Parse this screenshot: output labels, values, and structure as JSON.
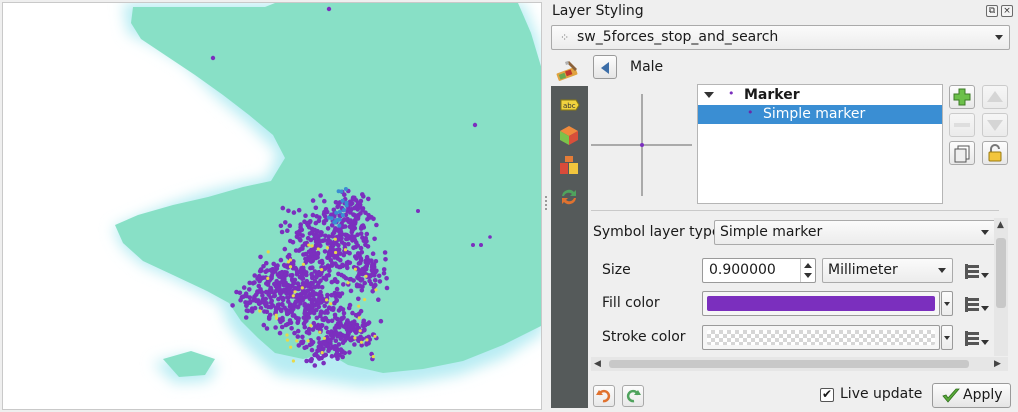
{
  "dock": {
    "title": "Layer Styling",
    "float_icon": "float-icon",
    "close_icon": "close-icon"
  },
  "layer_selector": {
    "value": "sw_5forces_stop_and_search",
    "icon": "point-layer-icon"
  },
  "symbol": {
    "name": "Male",
    "tree": {
      "root_label": "Marker",
      "child_label": "Simple marker"
    }
  },
  "properties": {
    "symbol_layer_type_label": "Symbol layer type",
    "symbol_layer_type_value": "Simple marker",
    "size_label": "Size",
    "size_value": "0.900000",
    "size_unit": "Millimeter",
    "fill_color_label": "Fill color",
    "fill_color": "#7b2fbe",
    "stroke_color_label": "Stroke color"
  },
  "footer": {
    "live_update_label": "Live update",
    "live_update_checked": true,
    "apply_label": "Apply"
  },
  "colors": {
    "land": "#88e0c6",
    "sea": "#ffffff",
    "coast_glow": "#b7ecf3",
    "points_primary": "#7b2fbe",
    "points_highlight": "#e8d94a",
    "points_selected": "#3a8ed3",
    "selection_blue": "#3a8ed3",
    "tool_strip": "#555a5a"
  }
}
